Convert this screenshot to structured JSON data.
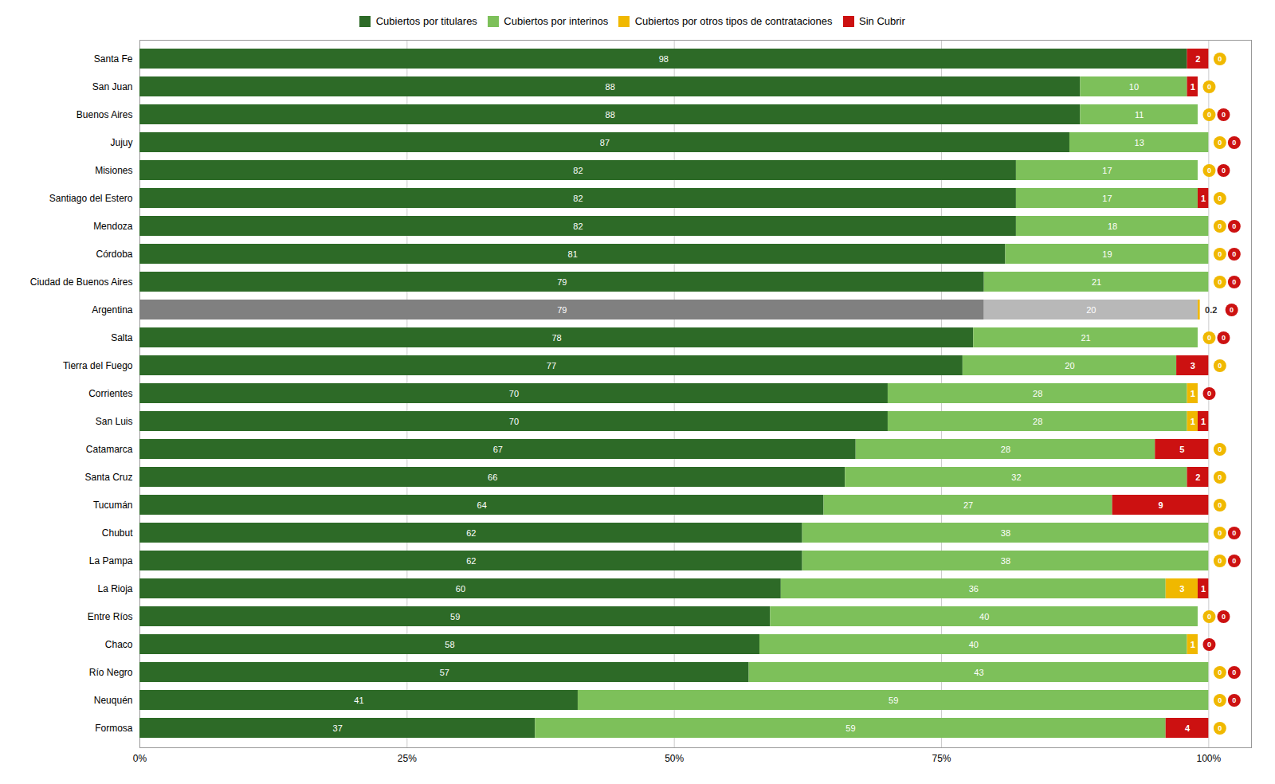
{
  "chart_data": {
    "type": "bar",
    "orientation": "horizontal",
    "stacked": true,
    "data_labels": true,
    "grid": true,
    "legend": "top",
    "categories": [
      "Santa Fe",
      "San Juan",
      "Buenos Aires",
      "Jujuy",
      "Misiones",
      "Santiago del Estero",
      "Mendoza",
      "Córdoba",
      "Ciudad de Buenos Aires",
      "Argentina",
      "Salta",
      "Tierra del Fuego",
      "Corrientes",
      "San Luis",
      "Catamarca",
      "Santa Cruz",
      "Tucumán",
      "Chubut",
      "La Pampa",
      "La Rioja",
      "Entre Ríos",
      "Chaco",
      "Río Negro",
      "Neuquén",
      "Formosa"
    ],
    "series": [
      {
        "name": "Cubiertos por titulares",
        "color": "#2d6a27",
        "colors": [
          "#2d6a27",
          "#2d6a27",
          "#2d6a27",
          "#2d6a27",
          "#2d6a27",
          "#2d6a27",
          "#2d6a27",
          "#2d6a27",
          "#2d6a27",
          "#808080",
          "#2d6a27",
          "#2d6a27",
          "#2d6a27",
          "#2d6a27",
          "#2d6a27",
          "#2d6a27",
          "#2d6a27",
          "#2d6a27",
          "#2d6a27",
          "#2d6a27",
          "#2d6a27",
          "#2d6a27",
          "#2d6a27",
          "#2d6a27",
          "#2d6a27"
        ],
        "values": [
          98,
          88,
          88,
          87,
          82,
          82,
          82,
          81,
          79,
          79,
          78,
          77,
          70,
          70,
          67,
          66,
          64,
          62,
          62,
          60,
          59,
          58,
          57,
          41,
          37
        ]
      },
      {
        "name": "Cubiertos por interinos",
        "color": "#7dc05a",
        "colors": [
          "#7dc05a",
          "#7dc05a",
          "#7dc05a",
          "#7dc05a",
          "#7dc05a",
          "#7dc05a",
          "#7dc05a",
          "#7dc05a",
          "#7dc05a",
          "#b8b8b8",
          "#7dc05a",
          "#7dc05a",
          "#7dc05a",
          "#7dc05a",
          "#7dc05a",
          "#7dc05a",
          "#7dc05a",
          "#7dc05a",
          "#7dc05a",
          "#7dc05a",
          "#7dc05a",
          "#7dc05a",
          "#7dc05a",
          "#7dc05a",
          "#7dc05a"
        ],
        "values": [
          0,
          10,
          11,
          13,
          17,
          17,
          18,
          19,
          21,
          20,
          21,
          20,
          28,
          28,
          28,
          32,
          27,
          38,
          38,
          36,
          40,
          40,
          43,
          59,
          59
        ]
      },
      {
        "name": "Cubiertos por otros tipos de contrataciones",
        "color": "#f0b800",
        "marker": "circle",
        "values": [
          0,
          0,
          0,
          0,
          0,
          0,
          0,
          0,
          0,
          0.2,
          0,
          0,
          1,
          1,
          0,
          0,
          0,
          0,
          0,
          3,
          0,
          1,
          0,
          0,
          0
        ]
      },
      {
        "name": "Sin Cubrir",
        "color": "#cc1111",
        "marker": "circle",
        "values": [
          2,
          1,
          0,
          0,
          0,
          1,
          0,
          0,
          0,
          0,
          0,
          3,
          0,
          1,
          5,
          2,
          9,
          0,
          0,
          1,
          0,
          0,
          0,
          0,
          4
        ]
      }
    ],
    "xlim": [
      0,
      104
    ],
    "xticks": [
      {
        "value": 0,
        "label": "0%"
      },
      {
        "value": 25,
        "label": "25%"
      },
      {
        "value": 50,
        "label": "50%"
      },
      {
        "value": 75,
        "label": "75%"
      },
      {
        "value": 100,
        "label": "100%"
      }
    ]
  }
}
